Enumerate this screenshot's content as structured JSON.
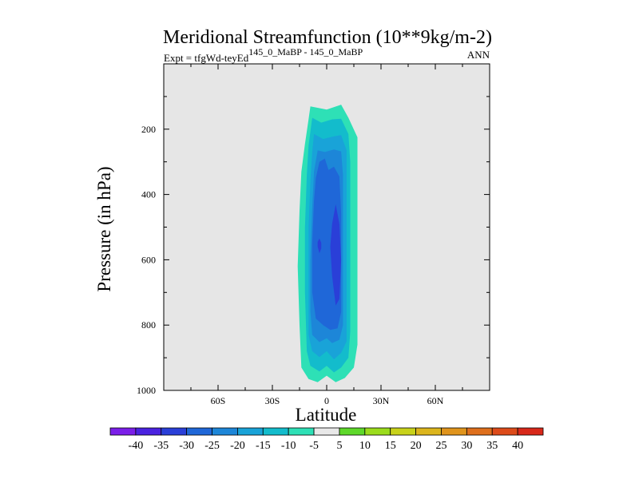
{
  "chart_data": {
    "type": "contour",
    "title": "Meridional Streamfunction (10**9kg/m-2)",
    "subtitle_left_prefix": "Expt = tfgWd-teyEd",
    "subtitle_left_super": "145_0_MaBP - 145_0_MaBP",
    "subtitle_right": "ANN",
    "xlabel": "Latitude",
    "ylabel": "Pressure (in hPa)",
    "xlim": [
      -90,
      90
    ],
    "ylim": [
      1000,
      0
    ],
    "xticks": [
      {
        "value": -60,
        "label": "60S"
      },
      {
        "value": -30,
        "label": "30S"
      },
      {
        "value": 0,
        "label": "0"
      },
      {
        "value": 30,
        "label": "30N"
      },
      {
        "value": 60,
        "label": "60N"
      }
    ],
    "yticks": [
      {
        "value": 200,
        "label": "200"
      },
      {
        "value": 400,
        "label": "400"
      },
      {
        "value": 600,
        "label": "600"
      },
      {
        "value": 800,
        "label": "800"
      },
      {
        "value": 1000,
        "label": "1000"
      }
    ],
    "background_color": "#e6e6e6",
    "colorbar": {
      "levels": [
        -40,
        -35,
        -30,
        -25,
        -20,
        -15,
        -10,
        -5,
        5,
        10,
        15,
        20,
        25,
        30,
        35,
        40
      ],
      "colors": [
        "#7b1ee8",
        "#4a22e0",
        "#2a3fd8",
        "#1f67d8",
        "#1d86d8",
        "#19a3d8",
        "#13bccc",
        "#2ee0b6",
        "#e8e8e8",
        "#5ed82a",
        "#9bdc1c",
        "#c8d21a",
        "#dcb51c",
        "#e0941c",
        "#de6f1c",
        "#dd4b1a",
        "#d8281a"
      ]
    },
    "contour_regions": [
      {
        "level": -10,
        "color": "#2ee0b6",
        "outline": [
          [
            -9,
            130
          ],
          [
            0,
            140
          ],
          [
            8,
            125
          ],
          [
            12,
            165
          ],
          [
            17,
            225
          ],
          [
            17,
            340
          ],
          [
            17,
            460
          ],
          [
            17,
            590
          ],
          [
            17,
            730
          ],
          [
            17,
            860
          ],
          [
            15,
            930
          ],
          [
            10,
            962
          ],
          [
            5,
            975
          ],
          [
            0,
            955
          ],
          [
            -5,
            975
          ],
          [
            -10,
            965
          ],
          [
            -14,
            930
          ],
          [
            -15,
            800
          ],
          [
            -16,
            620
          ],
          [
            -15,
            450
          ],
          [
            -14,
            330
          ],
          [
            -12,
            245
          ],
          [
            -10,
            170
          ]
        ]
      },
      {
        "level": -15,
        "color": "#13bccc",
        "outline": [
          [
            -8,
            165
          ],
          [
            -3,
            180
          ],
          [
            3,
            170
          ],
          [
            8,
            168
          ],
          [
            12,
            215
          ],
          [
            13,
            300
          ],
          [
            13,
            480
          ],
          [
            13,
            650
          ],
          [
            13,
            820
          ],
          [
            12,
            900
          ],
          [
            8,
            930
          ],
          [
            4,
            945
          ],
          [
            0,
            925
          ],
          [
            -4,
            942
          ],
          [
            -9,
            925
          ],
          [
            -11,
            880
          ],
          [
            -12,
            700
          ],
          [
            -12,
            500
          ],
          [
            -11,
            340
          ],
          [
            -10,
            250
          ]
        ]
      },
      {
        "level": -20,
        "color": "#19a3d8",
        "outline": [
          [
            -7,
            215
          ],
          [
            -2,
            230
          ],
          [
            4,
            222
          ],
          [
            8,
            218
          ],
          [
            11,
            265
          ],
          [
            11,
            380
          ],
          [
            11,
            540
          ],
          [
            11,
            700
          ],
          [
            11,
            850
          ],
          [
            8,
            885
          ],
          [
            4,
            905
          ],
          [
            0,
            880
          ],
          [
            -4,
            898
          ],
          [
            -8,
            880
          ],
          [
            -10,
            830
          ],
          [
            -10,
            680
          ],
          [
            -10,
            500
          ],
          [
            -9,
            360
          ],
          [
            -8,
            270
          ]
        ]
      },
      {
        "level": -25,
        "color": "#1d86d8",
        "outline": [
          [
            -5,
            265
          ],
          [
            -1,
            270
          ],
          [
            4,
            262
          ],
          [
            8,
            268
          ],
          [
            9,
            340
          ],
          [
            9,
            500
          ],
          [
            9,
            680
          ],
          [
            9,
            800
          ],
          [
            7,
            845
          ],
          [
            3,
            855
          ],
          [
            0,
            840
          ],
          [
            -4,
            852
          ],
          [
            -8,
            830
          ],
          [
            -9,
            760
          ],
          [
            -9,
            600
          ],
          [
            -8,
            440
          ],
          [
            -7,
            330
          ]
        ]
      },
      {
        "level": -30,
        "color": "#1f67d8",
        "outline": [
          [
            -4,
            300
          ],
          [
            -1,
            290
          ],
          [
            1,
            325
          ],
          [
            4,
            315
          ],
          [
            7,
            345
          ],
          [
            8,
            460
          ],
          [
            8,
            620
          ],
          [
            8,
            760
          ],
          [
            6,
            810
          ],
          [
            2,
            815
          ],
          [
            -2,
            800
          ],
          [
            -6,
            780
          ],
          [
            -8,
            700
          ],
          [
            -8,
            550
          ],
          [
            -7,
            420
          ],
          [
            -6,
            350
          ]
        ]
      },
      {
        "level": -35,
        "color": "#2a3fd8",
        "outline": [
          [
            5,
            430
          ],
          [
            7,
            490
          ],
          [
            8,
            600
          ],
          [
            7,
            720
          ],
          [
            5,
            740
          ],
          [
            3,
            650
          ],
          [
            2,
            560
          ],
          [
            3,
            490
          ]
        ]
      },
      {
        "level": -35,
        "color": "#2a3fd8",
        "outline": [
          [
            -4,
            535
          ],
          [
            -3,
            548
          ],
          [
            -3,
            565
          ],
          [
            -4,
            580
          ],
          [
            -5,
            560
          ],
          [
            -5,
            545
          ]
        ]
      }
    ]
  }
}
